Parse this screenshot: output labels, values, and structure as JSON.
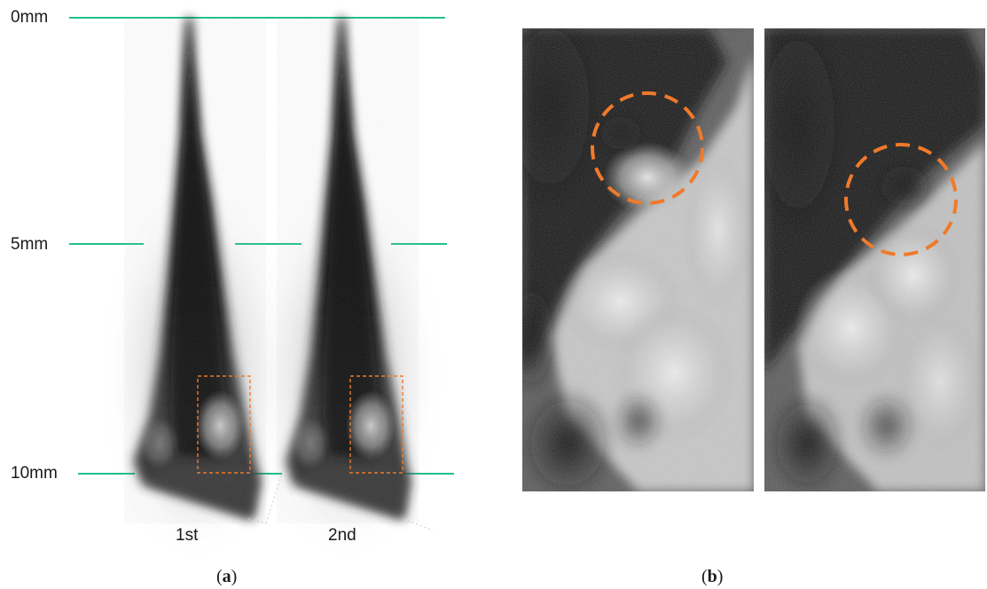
{
  "scale_labels": {
    "top": "0mm",
    "middle": "5mm",
    "bottom": "10mm"
  },
  "injection_labels": {
    "first": "1st",
    "second": "2nd"
  },
  "captions": {
    "a": "a",
    "b": "b"
  },
  "colors": {
    "reference_line": "#1fbf8f",
    "highlight_box": "#f07a2a",
    "highlight_circle": "#f07a2a",
    "spray": "#111111",
    "background": "#ffffff"
  }
}
